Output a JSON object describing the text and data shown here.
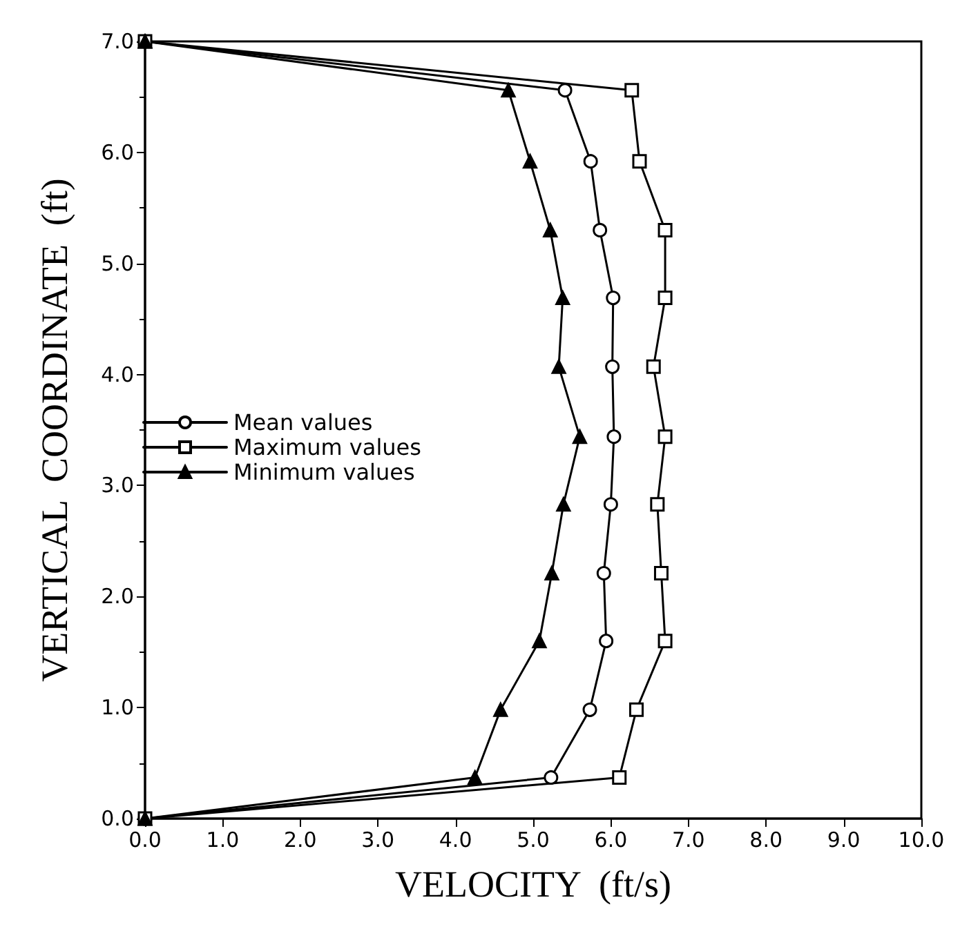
{
  "chart_data": {
    "type": "line",
    "xlabel": "VELOCITY  (ft/s)",
    "ylabel": "VERTICAL  COORDINATE  (ft)",
    "xlim": [
      0,
      10
    ],
    "ylim": [
      0,
      7
    ],
    "xticks": [
      {
        "value": 0,
        "label": "0.0"
      },
      {
        "value": 1,
        "label": "1.0"
      },
      {
        "value": 2,
        "label": "2.0"
      },
      {
        "value": 3,
        "label": "3.0"
      },
      {
        "value": 4,
        "label": "4.0"
      },
      {
        "value": 5,
        "label": "5.0"
      },
      {
        "value": 6,
        "label": "6.0"
      },
      {
        "value": 7,
        "label": "7.0"
      },
      {
        "value": 8,
        "label": "8.0"
      },
      {
        "value": 9,
        "label": "9.0"
      },
      {
        "value": 10,
        "label": "10.0"
      }
    ],
    "yticks": [
      {
        "value": 0,
        "label": "0.0"
      },
      {
        "value": 1,
        "label": "1.0"
      },
      {
        "value": 2,
        "label": "2.0"
      },
      {
        "value": 3,
        "label": "3.0"
      },
      {
        "value": 4,
        "label": "4.0"
      },
      {
        "value": 5,
        "label": "5.0"
      },
      {
        "value": 6,
        "label": "6.0"
      },
      {
        "value": 7,
        "label": "7.0"
      }
    ],
    "grid": false,
    "legend": "left",
    "line_style": "solid",
    "series": [
      {
        "name": "Mean values",
        "color": "#000000",
        "marker": "circle",
        "x": [
          0,
          5.23,
          5.73,
          5.94,
          5.91,
          6.0,
          6.04,
          6.02,
          6.03,
          5.86,
          5.74,
          5.41,
          0
        ],
        "values": [
          0,
          0.37,
          0.98,
          1.6,
          2.21,
          2.83,
          3.44,
          4.07,
          4.69,
          5.3,
          5.92,
          6.56,
          7.0
        ]
      },
      {
        "name": "Maximum values",
        "color": "#000000",
        "marker": "square",
        "x": [
          0,
          6.11,
          6.33,
          6.7,
          6.65,
          6.6,
          6.7,
          6.55,
          6.7,
          6.7,
          6.37,
          6.27,
          0
        ],
        "values": [
          0,
          0.37,
          0.98,
          1.6,
          2.21,
          2.83,
          3.44,
          4.07,
          4.69,
          5.3,
          5.92,
          6.56,
          7.0
        ]
      },
      {
        "name": "Minimum values",
        "color": "#000000",
        "marker": "triangle",
        "x": [
          0,
          4.25,
          4.58,
          5.08,
          5.24,
          5.39,
          5.6,
          5.33,
          5.38,
          5.22,
          4.96,
          4.68,
          0
        ],
        "values": [
          0,
          0.37,
          0.98,
          1.6,
          2.21,
          2.83,
          3.44,
          4.07,
          4.69,
          5.3,
          5.92,
          6.56,
          7.0
        ]
      }
    ]
  }
}
